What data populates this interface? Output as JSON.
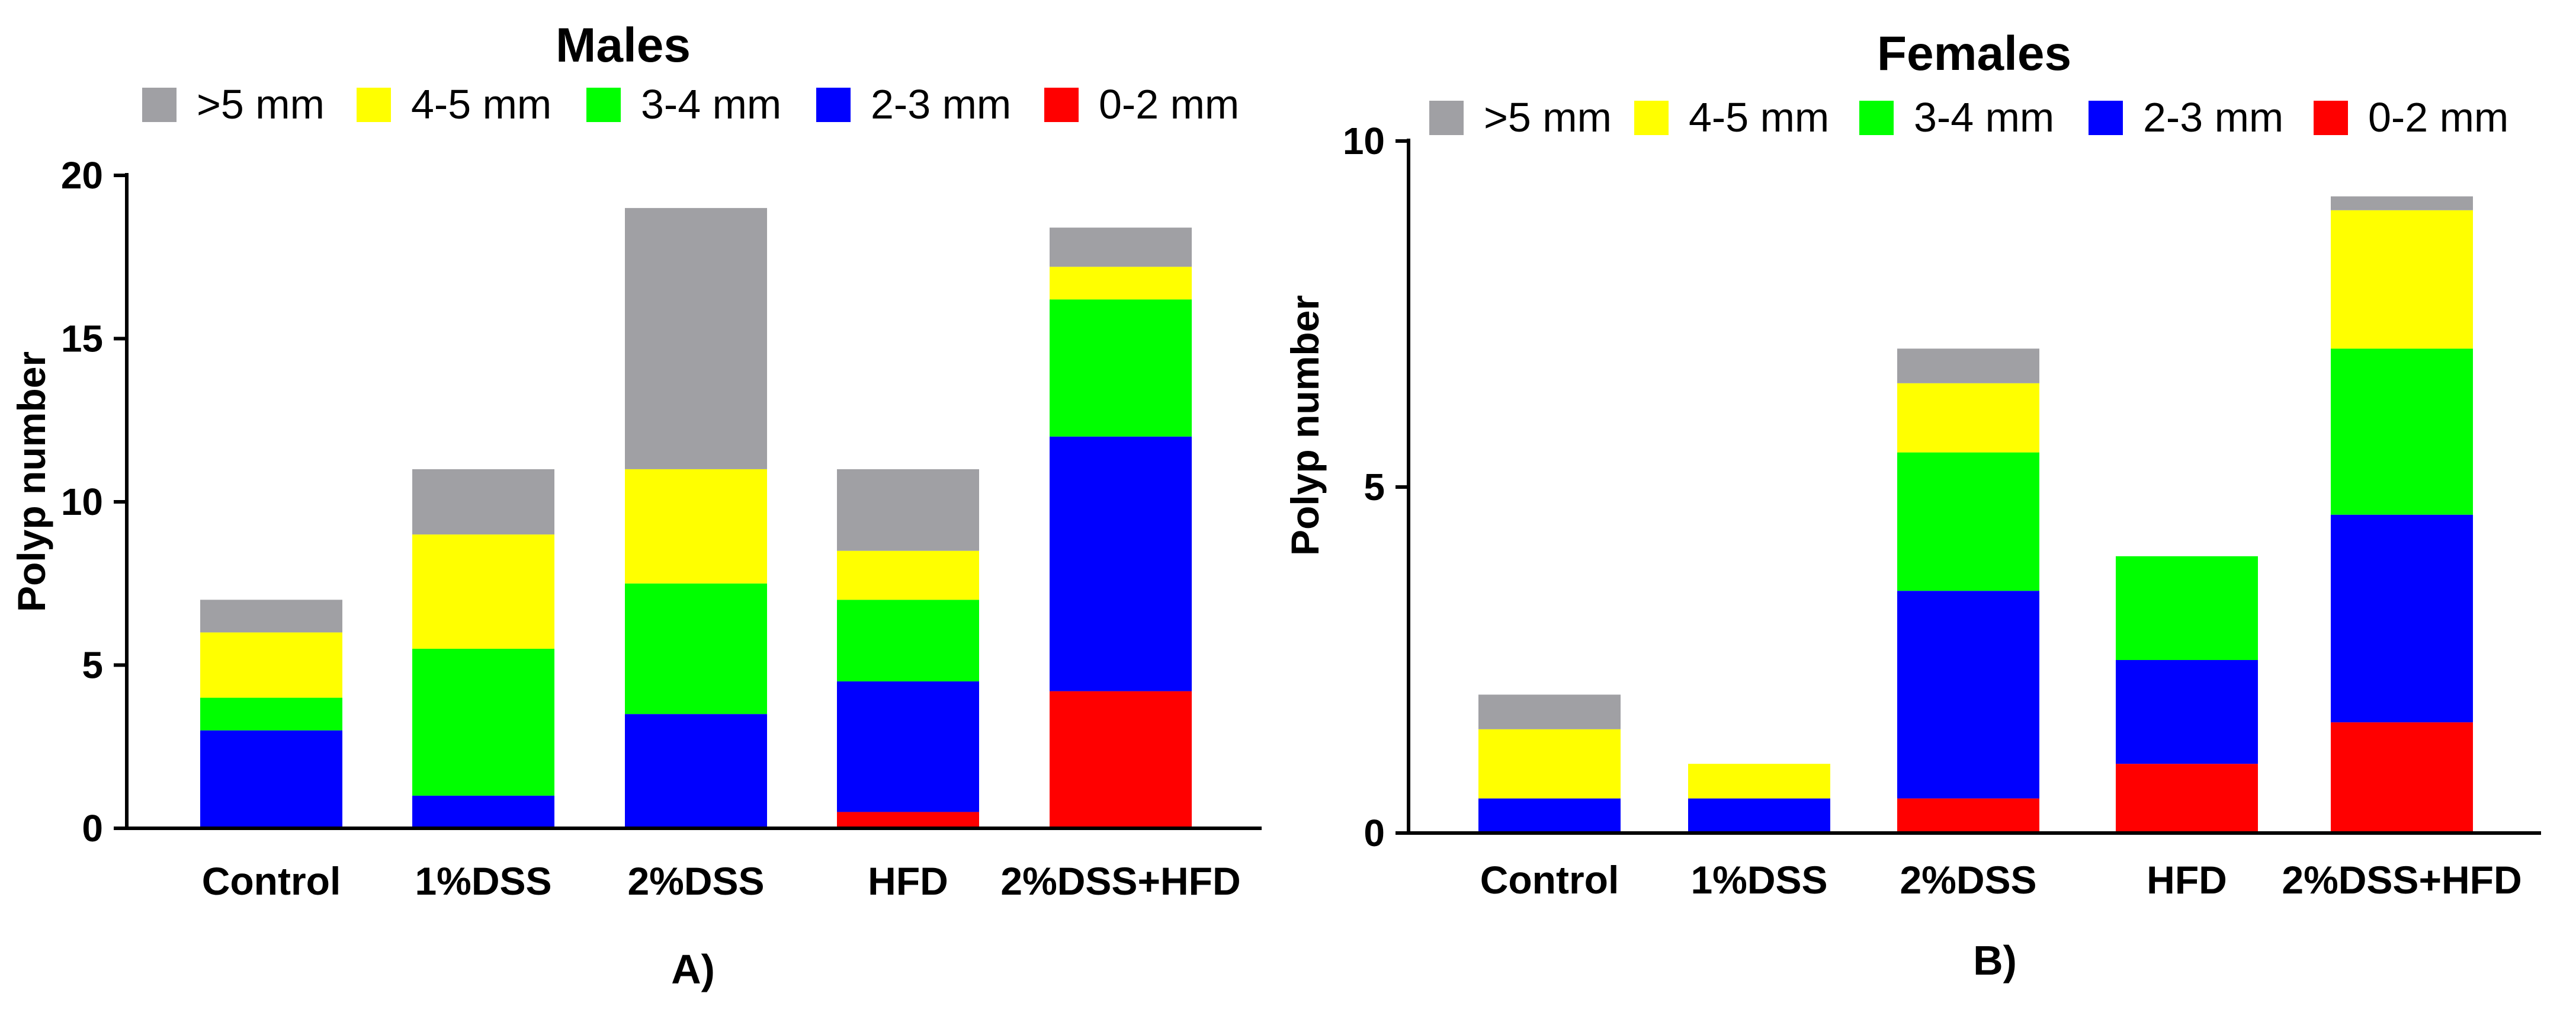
{
  "chart_data": [
    {
      "type": "bar",
      "stacked": true,
      "panel_label": "A)",
      "title": "Males",
      "xlabel": "",
      "ylabel": "Polyp number",
      "ylim": [
        0,
        20
      ],
      "yticks": [
        0,
        5,
        10,
        15,
        20
      ],
      "categories": [
        "Control",
        "1%DSS",
        "2%DSS",
        "HFD",
        "2%DSS+HFD"
      ],
      "legend_position": "top",
      "series": [
        {
          "name": "0-2 mm",
          "color": "#ff0000",
          "values": [
            0,
            0,
            0,
            0.5,
            4.2
          ]
        },
        {
          "name": "2-3 mm",
          "color": "#0000ff",
          "values": [
            3,
            1,
            3.5,
            4,
            7.8
          ]
        },
        {
          "name": "3-4 mm",
          "color": "#00ff00",
          "values": [
            1,
            4.5,
            4,
            2.5,
            4.2
          ]
        },
        {
          "name": "4-5 mm",
          "color": "#ffff00",
          "values": [
            2,
            3.5,
            3.5,
            1.5,
            1
          ]
        },
        {
          "name": ">5 mm",
          "color": "#a0a0a4",
          "values": [
            1,
            2,
            8,
            2.5,
            1.2
          ]
        }
      ]
    },
    {
      "type": "bar",
      "stacked": true,
      "panel_label": "B)",
      "title": "Females",
      "xlabel": "",
      "ylabel": "Polyp number",
      "ylim": [
        0,
        10
      ],
      "yticks": [
        0,
        5,
        10
      ],
      "categories": [
        "Control",
        "1%DSS",
        "2%DSS",
        "HFD",
        "2%DSS+HFD"
      ],
      "legend_position": "top",
      "series": [
        {
          "name": "0-2 mm",
          "color": "#ff0000",
          "values": [
            0,
            0,
            0.5,
            1,
            1.6
          ]
        },
        {
          "name": "2-3 mm",
          "color": "#0000ff",
          "values": [
            0.5,
            0.5,
            3,
            1.5,
            3
          ]
        },
        {
          "name": "3-4 mm",
          "color": "#00ff00",
          "values": [
            0,
            0,
            2,
            1.5,
            2.4
          ]
        },
        {
          "name": "4-5 mm",
          "color": "#ffff00",
          "values": [
            1,
            0.5,
            1,
            0,
            2
          ]
        },
        {
          "name": ">5 mm",
          "color": "#a0a0a4",
          "values": [
            0.5,
            0,
            0.5,
            0,
            0.2
          ]
        }
      ]
    }
  ]
}
